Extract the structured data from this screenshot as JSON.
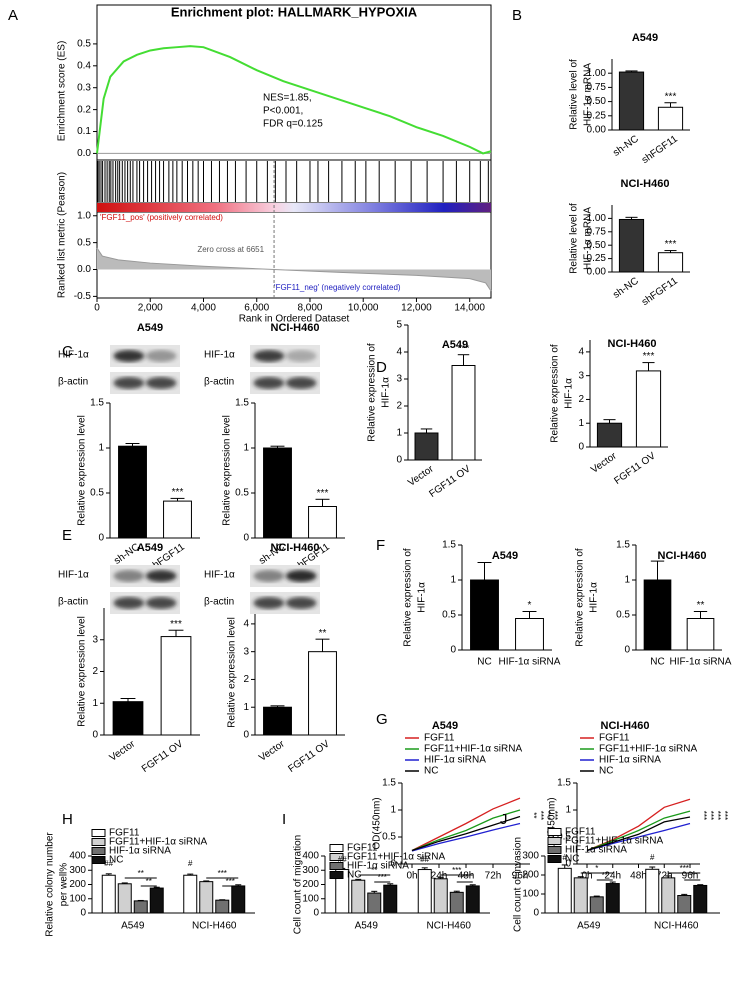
{
  "chart_data": [
    {
      "type": "gsea",
      "panel": "A",
      "title": "Enrichment plot: HALLMARK_HYPOXIA",
      "ylabel": [
        "Enrichment score (ES)"
      ],
      "y2label": [
        "Ranked list metric (Pearson)"
      ],
      "xlabel": "Rank in Ordered Dataset",
      "x": [
        0,
        250,
        500,
        1000,
        1500,
        2000,
        2500,
        3000,
        3500,
        4000,
        5000,
        6000,
        7000,
        8000,
        9000,
        10000,
        11000,
        12000,
        13000,
        14000,
        14500,
        14800
      ],
      "values": [
        0,
        0.25,
        0.35,
        0.42,
        0.45,
        0.47,
        0.48,
        0.485,
        0.49,
        0.485,
        0.44,
        0.38,
        0.33,
        0.29,
        0.25,
        0.21,
        0.17,
        0.12,
        0.08,
        0.03,
        0,
        0.01
      ],
      "hits": [
        30,
        80,
        150,
        210,
        300,
        380,
        460,
        520,
        600,
        700,
        780,
        850,
        950,
        1050,
        1150,
        1250,
        1350,
        1500,
        1600,
        1750,
        1900,
        2050,
        2200,
        2350,
        2500,
        2700,
        2850,
        3000,
        3200,
        3400,
        3600,
        3800,
        4000,
        4300,
        4600,
        4900,
        5200,
        5600,
        6000,
        6400,
        6700,
        7100,
        7500,
        8000,
        8300,
        8700,
        9200,
        9700,
        10100,
        10600,
        11200,
        11800,
        12400,
        13000,
        13500,
        14000,
        14400,
        14700
      ],
      "metric_x": [
        0,
        200,
        800,
        2000,
        4000,
        6651,
        9000,
        12000,
        14000,
        14600,
        14800
      ],
      "metric_values": [
        0.4,
        0.25,
        0.18,
        0.12,
        0.06,
        0,
        -0.05,
        -0.11,
        -0.17,
        -0.25,
        -0.4
      ],
      "zero_cross": 6651,
      "annotation": [
        "NES=1.85,",
        "P<0.001,",
        "FDR q=0.125"
      ],
      "pos_label": "'FGF11_pos' (positively correlated)",
      "neg_label": "'FGF11_neg' (negatively correlated)",
      "zero_label": "Zero cross at 6651",
      "color": "#44dd33",
      "xlim": [
        0,
        14800
      ],
      "xticks": [
        0,
        {
          "value": 2000,
          "label": "2,000"
        },
        {
          "value": 4000,
          "label": "4,000"
        },
        {
          "value": 6000,
          "label": "6,000"
        },
        {
          "value": 8000,
          "label": "8,000"
        },
        {
          "value": 10000,
          "label": "10,000"
        },
        {
          "value": 12000,
          "label": "12,000"
        },
        {
          "value": 14000,
          "label": "14,000"
        }
      ],
      "ylim": [
        -0.03,
        0.6
      ],
      "yticks": [
        {
          "value": 0,
          "label": "0.0"
        },
        0.1,
        0.2,
        0.3,
        0.4,
        0.5
      ],
      "y2lim": [
        -0.53,
        1.07
      ],
      "y2ticks": [
        {
          "value": 1,
          "label": "1.0"
        },
        0.5,
        {
          "value": 0,
          "label": "0.0"
        },
        -0.5
      ]
    },
    {
      "type": "bar",
      "panel": "B",
      "title": "A549",
      "ylabel": [
        "Relative level of",
        "HIF-1α mRNA"
      ],
      "categories": [
        "sh-NC",
        "shFGF11"
      ],
      "values": [
        1.02,
        0.4
      ],
      "errors": [
        0.02,
        0.08
      ],
      "colors": [
        "#333333",
        "#ffffff"
      ],
      "significance": "***",
      "ylim": [
        0,
        1.25
      ],
      "yticks": [
        {
          "value": 0,
          "label": "0.00"
        },
        0.25,
        {
          "value": 0.5,
          "label": "0.50"
        },
        0.75,
        {
          "value": 1,
          "label": "1.00"
        }
      ]
    },
    {
      "type": "bar",
      "title": "NCI-H460",
      "ylabel": [
        "Relative level of",
        "HIF-1α mRNA"
      ],
      "categories": [
        "sh-NC",
        "shFGF11"
      ],
      "values": [
        0.98,
        0.36
      ],
      "errors": [
        0.04,
        0.04
      ],
      "colors": [
        "#333333",
        "#ffffff"
      ],
      "significance": "***",
      "ylim": [
        0,
        1.25
      ],
      "yticks": [
        {
          "value": 0,
          "label": "0.00"
        },
        0.25,
        {
          "value": 0.5,
          "label": "0.50"
        },
        0.75,
        {
          "value": 1,
          "label": "1.00"
        }
      ]
    },
    {
      "type": "bar",
      "panel": "C",
      "title": "A549",
      "blot_labels": [
        "HIF-1α",
        "β-actin"
      ],
      "ylabel": [
        "Relative expression level"
      ],
      "categories": [
        "sh-NC",
        "shFGF11"
      ],
      "values": [
        1.02,
        0.41
      ],
      "errors": [
        0.03,
        0.03
      ],
      "colors": [
        "#000000",
        "#ffffff"
      ],
      "significance": "***",
      "ylim": [
        0,
        1.5
      ],
      "yticks": [
        0,
        0.5,
        1,
        1.5
      ]
    },
    {
      "type": "bar",
      "title": "NCI-H460",
      "blot_labels": [
        "HIF-1α",
        "β-actin"
      ],
      "ylabel": [
        "Relative expression level"
      ],
      "categories": [
        "sh-NC",
        "shFGF11"
      ],
      "values": [
        1.0,
        0.35
      ],
      "errors": [
        0.02,
        0.08
      ],
      "colors": [
        "#000000",
        "#ffffff"
      ],
      "significance": "***",
      "ylim": [
        0,
        1.5
      ],
      "yticks": [
        0,
        0.5,
        1,
        1.5
      ]
    },
    {
      "type": "bar",
      "panel": "D",
      "title": "A549",
      "ylabel": [
        "Relative expression of",
        "HIF-1α"
      ],
      "categories": [
        "Vector",
        "FGF11 OV"
      ],
      "values": [
        1.0,
        3.5
      ],
      "errors": [
        0.15,
        0.4
      ],
      "colors": [
        "#333333",
        "#ffffff"
      ],
      "significance": "***",
      "ylim": [
        0,
        5
      ],
      "yticks": [
        0,
        1,
        2,
        3,
        4,
        5
      ]
    },
    {
      "type": "bar",
      "title": "NCI-H460",
      "ylabel": [
        "Relative expression of",
        "HIF-1α"
      ],
      "categories": [
        "Vector",
        "FGF11 OV"
      ],
      "values": [
        1.0,
        3.2
      ],
      "errors": [
        0.15,
        0.35
      ],
      "colors": [
        "#333333",
        "#ffffff"
      ],
      "significance": "***",
      "ylim": [
        0,
        4.5
      ],
      "yticks": [
        0,
        1,
        2,
        3,
        4
      ]
    },
    {
      "type": "bar",
      "panel": "E",
      "title": "A549",
      "blot_labels": [
        "HIF-1α",
        "β-actin"
      ],
      "ylabel": [
        "Relative expression level"
      ],
      "categories": [
        "Vector",
        "FGF11 OV"
      ],
      "values": [
        1.05,
        3.1
      ],
      "errors": [
        0.1,
        0.2
      ],
      "colors": [
        "#000000",
        "#ffffff"
      ],
      "significance": "***",
      "ylim": [
        0,
        4
      ],
      "yticks": [
        0,
        1,
        2,
        3
      ]
    },
    {
      "type": "bar",
      "title": "NCI-H460",
      "blot_labels": [
        "HIF-1α",
        "β-actin"
      ],
      "ylabel": [
        "Relative expression level"
      ],
      "categories": [
        "Vector",
        "FGF11 OV"
      ],
      "values": [
        1.0,
        3.0
      ],
      "errors": [
        0.05,
        0.45
      ],
      "colors": [
        "#000000",
        "#ffffff"
      ],
      "significance": "**",
      "ylim": [
        0,
        4.5
      ],
      "yticks": [
        0,
        1,
        2,
        3,
        4
      ]
    },
    {
      "type": "bar",
      "panel": "F",
      "title": "A549",
      "ylabel": [
        "Relative expression of",
        "HIF-1α"
      ],
      "categories": [
        "NC",
        "HIF-1α siRNA"
      ],
      "values": [
        1.0,
        0.45
      ],
      "errors": [
        0.25,
        0.1
      ],
      "colors": [
        "#000000",
        "#ffffff"
      ],
      "significance": "*",
      "ylim": [
        0,
        1.5
      ],
      "yticks": [
        0,
        0.5,
        1,
        1.5
      ]
    },
    {
      "type": "bar",
      "title": "NCI-H460",
      "ylabel": [
        "Relative expression of",
        "HIF-1α"
      ],
      "categories": [
        "NC",
        "HIF-1α siRNA"
      ],
      "values": [
        1.0,
        0.45
      ],
      "errors": [
        0.27,
        0.1
      ],
      "colors": [
        "#000000",
        "#ffffff"
      ],
      "significance": "**",
      "ylim": [
        0,
        1.5
      ],
      "yticks": [
        0,
        0.5,
        1,
        1.5
      ]
    },
    {
      "type": "line",
      "panel": "G",
      "title": "A549",
      "ylabel": [
        "OD(450nm)"
      ],
      "categories": [
        "0h",
        "24h",
        "48h",
        "72h",
        "96h"
      ],
      "series": [
        {
          "name": "FGF11",
          "color": "#d62020",
          "values": [
            0.25,
            0.5,
            0.75,
            1.02,
            1.22
          ]
        },
        {
          "name": "FGF11+HIF-1α siRNA",
          "color": "#1a9a1a",
          "values": [
            0.25,
            0.45,
            0.62,
            0.85,
            1.0
          ]
        },
        {
          "name": "HIF-1α siRNA",
          "color": "#2020d0",
          "values": [
            0.24,
            0.38,
            0.5,
            0.63,
            0.75
          ]
        },
        {
          "name": "NC",
          "color": "#000000",
          "values": [
            0.25,
            0.42,
            0.56,
            0.72,
            0.88
          ]
        }
      ],
      "annotations": [
        "**",
        "***",
        "***",
        "***"
      ],
      "ylim": [
        0,
        1.5
      ],
      "yticks": [
        0,
        0.5,
        1,
        1.5
      ]
    },
    {
      "type": "line",
      "title": "NCI-H460",
      "ylabel": [
        "OD(450nm)"
      ],
      "categories": [
        "0h",
        "24h",
        "48h",
        "72h",
        "96h"
      ],
      "series": [
        {
          "name": "FGF11",
          "color": "#d62020",
          "values": [
            0.25,
            0.45,
            0.7,
            1.05,
            1.2
          ]
        },
        {
          "name": "FGF11+HIF-1α siRNA",
          "color": "#1a9a1a",
          "values": [
            0.25,
            0.43,
            0.62,
            0.85,
            0.98
          ]
        },
        {
          "name": "HIF-1α siRNA",
          "color": "#2020d0",
          "values": [
            0.25,
            0.38,
            0.5,
            0.62,
            0.75
          ]
        },
        {
          "name": "NC",
          "color": "#000000",
          "values": [
            0.25,
            0.4,
            0.55,
            0.78,
            0.87
          ]
        }
      ],
      "annotations": [
        "***",
        "***",
        "***",
        "***"
      ],
      "ylim": [
        0,
        1.5
      ],
      "yticks": [
        0,
        0.5,
        1,
        1.5
      ]
    },
    {
      "type": "grouped_bar",
      "panel": "H",
      "ylabel": [
        "Relative colony number",
        "per well%"
      ],
      "categories": [
        "A549",
        "NCI-H460"
      ],
      "series": [
        {
          "name": "FGF11",
          "color": "#ffffff",
          "values": [
            265,
            265
          ],
          "errors": [
            10,
            8
          ]
        },
        {
          "name": "FGF11+HIF-1α siRNA",
          "color": "#d0d0d0",
          "values": [
            205,
            220
          ],
          "errors": [
            6,
            5
          ]
        },
        {
          "name": "HIF-1α siRNA",
          "color": "#707070",
          "values": [
            85,
            90
          ],
          "errors": [
            3,
            3
          ]
        },
        {
          "name": "NC",
          "color": "#111111",
          "values": [
            175,
            190
          ],
          "errors": [
            6,
            8
          ]
        }
      ],
      "annotations": [
        "##",
        "**",
        "**",
        "#",
        "***",
        "***"
      ],
      "ylim": [
        0,
        400
      ],
      "yticks": [
        0,
        100,
        200,
        300,
        400
      ]
    },
    {
      "type": "grouped_bar",
      "panel": "I",
      "ylabel": [
        "Cell count of migration"
      ],
      "categories": [
        "A549",
        "NCI-H460"
      ],
      "series": [
        {
          "name": "FGF11",
          "color": "#ffffff",
          "values": [
            305,
            305
          ],
          "errors": [
            8,
            12
          ]
        },
        {
          "name": "FGF11+HIF-1α siRNA",
          "color": "#d0d0d0",
          "values": [
            230,
            240
          ],
          "errors": [
            6,
            8
          ]
        },
        {
          "name": "HIF-1α siRNA",
          "color": "#707070",
          "values": [
            140,
            145
          ],
          "errors": [
            12,
            8
          ]
        },
        {
          "name": "NC",
          "color": "#111111",
          "values": [
            195,
            190
          ],
          "errors": [
            10,
            8
          ]
        }
      ],
      "annotations": [
        "##",
        "**",
        "***",
        "##",
        "***",
        "**"
      ],
      "ylim": [
        0,
        400
      ],
      "yticks": [
        0,
        100,
        200,
        300,
        400
      ]
    },
    {
      "type": "grouped_bar",
      "panel": "J",
      "ylabel": [
        "Cell count of invasion"
      ],
      "categories": [
        "A549",
        "NCI-H460"
      ],
      "series": [
        {
          "name": "FGF11",
          "color": "#ffffff",
          "values": [
            235,
            230
          ],
          "errors": [
            18,
            12
          ]
        },
        {
          "name": "FGF11+HIF-1α siRNA",
          "color": "#d0d0d0",
          "values": [
            185,
            185
          ],
          "errors": [
            6,
            10
          ]
        },
        {
          "name": "HIF-1α siRNA",
          "color": "#707070",
          "values": [
            85,
            92
          ],
          "errors": [
            4,
            6
          ]
        },
        {
          "name": "NC",
          "color": "#111111",
          "values": [
            155,
            145
          ],
          "errors": [
            8,
            4
          ]
        }
      ],
      "annotations": [
        "#",
        "*",
        "**",
        "#",
        "***",
        "*"
      ],
      "ylim": [
        0,
        300
      ],
      "yticks": [
        0,
        100,
        200,
        300
      ]
    }
  ]
}
